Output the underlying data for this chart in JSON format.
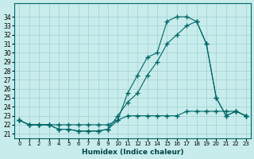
{
  "xlabel": "Humidex (Indice chaleur)",
  "ylabel": "",
  "bg_color": "#c8ecec",
  "grid_color": "#a0d0d0",
  "line_color": "#006666",
  "xlim": [
    -0.5,
    23.5
  ],
  "ylim": [
    21,
    35
  ],
  "yticks": [
    21,
    22,
    23,
    24,
    25,
    26,
    27,
    28,
    29,
    30,
    31,
    32,
    33,
    34
  ],
  "xticks": [
    0,
    1,
    2,
    3,
    4,
    5,
    6,
    7,
    8,
    9,
    10,
    11,
    12,
    13,
    14,
    15,
    16,
    17,
    18,
    19,
    20,
    21,
    22,
    23
  ],
  "curve1_x": [
    0,
    1,
    2,
    3,
    4,
    5,
    6,
    7,
    8,
    9,
    10,
    11,
    12,
    13,
    14,
    15,
    16,
    17,
    18,
    19,
    20,
    21,
    22,
    23
  ],
  "curve1_y": [
    22.5,
    22.0,
    22.0,
    22.0,
    21.5,
    21.5,
    21.3,
    21.3,
    21.3,
    21.5,
    22.5,
    25.5,
    27.5,
    29.5,
    30.0,
    33.5,
    34.0,
    34.0,
    33.5,
    31.0,
    25.0,
    23.0,
    23.5,
    23.0
  ],
  "curve2_x": [
    0,
    1,
    2,
    3,
    4,
    5,
    6,
    7,
    8,
    9,
    10,
    11,
    12,
    13,
    14,
    15,
    16,
    17,
    18,
    19,
    20,
    21,
    22,
    23
  ],
  "curve2_y": [
    22.5,
    22.0,
    22.0,
    22.0,
    21.5,
    21.5,
    21.3,
    21.3,
    21.3,
    21.5,
    23.0,
    24.5,
    25.5,
    27.5,
    29.0,
    31.0,
    32.0,
    33.0,
    33.5,
    31.0,
    25.0,
    23.0,
    23.5,
    23.0
  ],
  "curve3_x": [
    0,
    1,
    2,
    3,
    4,
    5,
    6,
    7,
    8,
    9,
    10,
    11,
    12,
    13,
    14,
    15,
    16,
    17,
    18,
    19,
    20,
    21,
    22,
    23
  ],
  "curve3_y": [
    22.5,
    22.0,
    22.0,
    22.0,
    22.0,
    22.0,
    22.0,
    22.0,
    22.0,
    22.0,
    22.5,
    23.0,
    23.0,
    23.0,
    23.0,
    23.0,
    23.0,
    23.5,
    23.5,
    23.5,
    23.5,
    23.5,
    23.5,
    23.0
  ]
}
